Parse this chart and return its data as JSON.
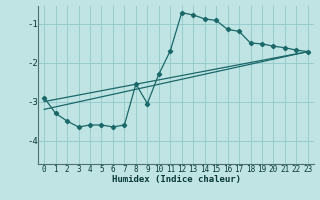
{
  "xlabel": "Humidex (Indice chaleur)",
  "bg_color": "#c0e4e4",
  "grid_color": "#98cccc",
  "line_color": "#1a6868",
  "xlim": [
    -0.5,
    23.5
  ],
  "ylim": [
    -4.6,
    -0.55
  ],
  "yticks": [
    -4,
    -3,
    -2,
    -1
  ],
  "xticks": [
    0,
    1,
    2,
    3,
    4,
    5,
    6,
    7,
    8,
    9,
    10,
    11,
    12,
    13,
    14,
    15,
    16,
    17,
    18,
    19,
    20,
    21,
    22,
    23
  ],
  "curve1_x": [
    0,
    1,
    2,
    3,
    4,
    5,
    6,
    7,
    8,
    9,
    10,
    11,
    12,
    13,
    14,
    15,
    16,
    17,
    18,
    19,
    20,
    21,
    22,
    23
  ],
  "curve1_y": [
    -2.9,
    -3.3,
    -3.5,
    -3.65,
    -3.6,
    -3.6,
    -3.65,
    -3.6,
    -2.55,
    -3.05,
    -2.3,
    -1.7,
    -0.72,
    -0.78,
    -0.88,
    -0.92,
    -1.15,
    -1.2,
    -1.5,
    -1.52,
    -1.58,
    -1.62,
    -1.68,
    -1.72
  ],
  "line1_x0": 0,
  "line1_y0": -3.0,
  "line1_x1": 23,
  "line1_y1": -1.72,
  "line2_x0": 0,
  "line2_y0": -3.2,
  "line2_x1": 23,
  "line2_y1": -1.72
}
